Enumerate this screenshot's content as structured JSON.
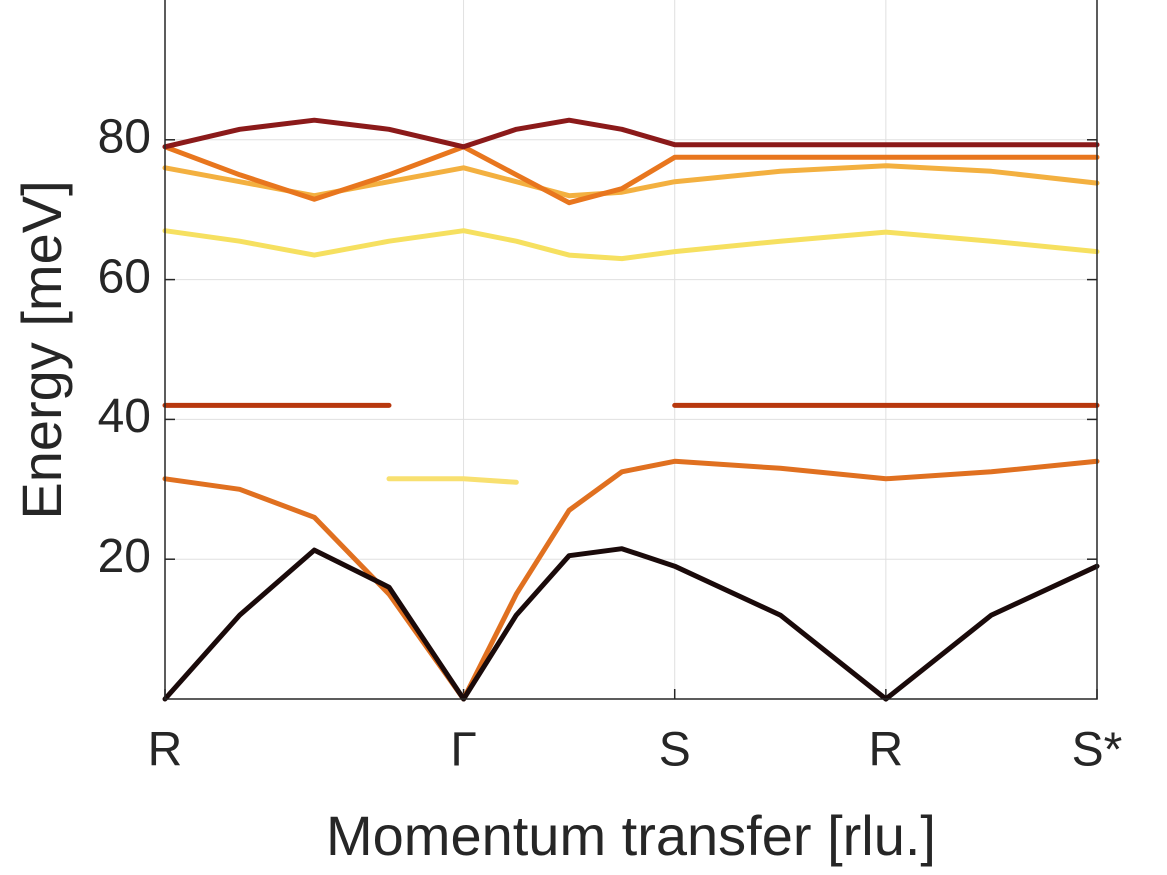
{
  "chart_data": {
    "type": "line",
    "xlabel": "Momentum transfer [rlu.]",
    "ylabel": "Energy [meV]",
    "x": [
      0,
      0.354,
      0.707,
      1.061,
      1.414,
      1.664,
      1.914,
      2.164,
      2.414,
      2.914,
      3.414,
      3.914,
      4.414
    ],
    "xlim": [
      0,
      4.414
    ],
    "xticks": [
      {
        "value": 0,
        "label": "R"
      },
      {
        "value": 1.414,
        "label": "Γ"
      },
      {
        "value": 2.414,
        "label": "S"
      },
      {
        "value": 3.414,
        "label": "R"
      },
      {
        "value": 4.414,
        "label": "S*"
      }
    ],
    "ylim": [
      0,
      100
    ],
    "yticks": [
      20,
      40,
      60,
      80
    ],
    "grid": true,
    "series": [
      {
        "color": "#f6e060",
        "values": [
          67,
          65.5,
          63.5,
          65.5,
          67,
          65.5,
          63.5,
          63,
          64,
          65.5,
          66.8,
          65.5,
          64
        ]
      },
      {
        "color": "#f3b040",
        "values": [
          76,
          74,
          72,
          74,
          76,
          74,
          72,
          72.5,
          74,
          75.5,
          76.3,
          75.5,
          73.8
        ]
      },
      {
        "color": "#e8761e",
        "values": [
          79,
          75,
          71.5,
          75,
          79,
          75,
          71,
          73,
          77.5,
          77.5,
          77.5,
          77.5,
          77.5
        ]
      },
      {
        "color": "#8b1a1a",
        "values": [
          79,
          81.5,
          82.8,
          81.5,
          79,
          81.5,
          82.8,
          81.5,
          79.3,
          79.3,
          79.3,
          79.3,
          79.3
        ]
      },
      {
        "color": "#b8380e",
        "values": [
          42,
          42,
          42,
          42,
          null,
          null,
          null,
          null,
          42,
          42,
          42,
          42,
          42
        ]
      },
      {
        "color": "#f8e070",
        "values": [
          null,
          null,
          null,
          31.5,
          31.5,
          31,
          null,
          null,
          null,
          null,
          null,
          null,
          null
        ]
      },
      {
        "color": "#e07020",
        "values": [
          31.5,
          30,
          26,
          15,
          0,
          15,
          27,
          32.5,
          34,
          33,
          31.5,
          32.5,
          34
        ]
      },
      {
        "color": "#1a0a0a",
        "values": [
          0,
          12,
          21.3,
          16,
          0,
          12,
          20.5,
          21.5,
          19,
          12,
          0,
          12,
          19
        ]
      }
    ]
  }
}
